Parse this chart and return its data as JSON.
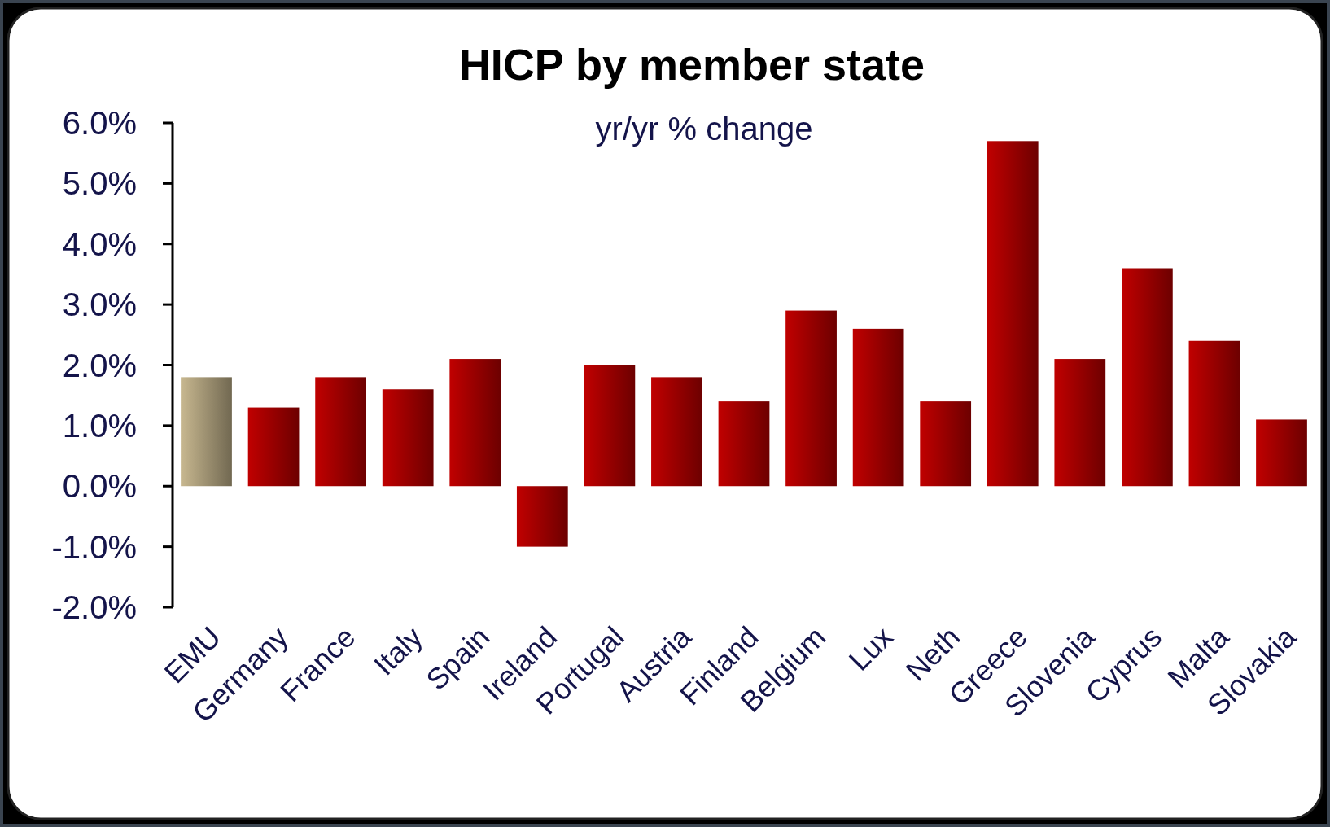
{
  "chart_data": {
    "type": "bar",
    "title": "HICP by member state",
    "subtitle": "yr/yr % change",
    "categories": [
      "EMU",
      "Germany",
      "France",
      "Italy",
      "Spain",
      "Ireland",
      "Portugal",
      "Austria",
      "Finland",
      "Belgium",
      "Lux",
      "Neth",
      "Greece",
      "Slovenia",
      "Cyprus",
      "Malta",
      "Slovakia"
    ],
    "values": [
      1.8,
      1.3,
      1.8,
      1.6,
      2.1,
      -1.0,
      2.0,
      1.8,
      1.4,
      2.9,
      2.6,
      1.4,
      5.7,
      2.1,
      3.6,
      2.4,
      1.1
    ],
    "colors": [
      "#c8b890",
      "#c00000",
      "#c00000",
      "#c00000",
      "#c00000",
      "#c00000",
      "#c00000",
      "#c00000",
      "#c00000",
      "#c00000",
      "#c00000",
      "#c00000",
      "#c00000",
      "#c00000",
      "#c00000",
      "#c00000",
      "#c00000"
    ],
    "ylim": [
      -2,
      6
    ],
    "yticks": [
      {
        "value": -2,
        "label": "-2.0%"
      },
      {
        "value": -1,
        "label": "-1.0%"
      },
      {
        "value": 0,
        "label": "0.0%"
      },
      {
        "value": 1,
        "label": "1.0%"
      },
      {
        "value": 2,
        "label": "2.0%"
      },
      {
        "value": 3,
        "label": "3.0%"
      },
      {
        "value": 4,
        "label": "4.0%"
      },
      {
        "value": 5,
        "label": "5.0%"
      },
      {
        "value": 6,
        "label": "6.0%"
      }
    ],
    "grid": false
  }
}
